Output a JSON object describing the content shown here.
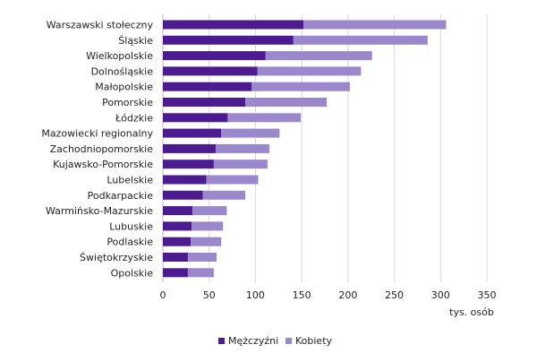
{
  "chart_data": {
    "type": "bar",
    "orientation": "horizontal",
    "stacked": true,
    "categories": [
      "Warszawski stołeczny",
      "Śląskie",
      "Wielkopolskie",
      "Dolnośląskie",
      "Małopolskie",
      "Pomorskie",
      "Łódzkie",
      "Mazowiecki regionalny",
      "Zachodniopomorskie",
      "Kujawsko-Pomorskie",
      "Lubelskie",
      "Podkarpackie",
      "Warmińsko-Mazurskie",
      "Lubuskie",
      "Podlaskie",
      "Świętokrzyskie",
      "Opolskie"
    ],
    "series": [
      {
        "name": "Mężczyźni",
        "color": "#4b1b8f",
        "values": [
          152,
          141,
          111,
          102,
          96,
          89,
          70,
          63,
          57,
          55,
          47,
          43,
          32,
          31,
          30,
          27,
          27
        ]
      },
      {
        "name": "Kobiety",
        "color": "#9b87cc",
        "values": [
          154,
          145,
          115,
          112,
          106,
          88,
          79,
          63,
          58,
          58,
          56,
          46,
          37,
          34,
          33,
          31,
          28
        ]
      }
    ],
    "xlim": [
      0,
      350
    ],
    "xticks": [
      0,
      50,
      100,
      150,
      200,
      250,
      300,
      350
    ],
    "xlabel": "tys. osób",
    "grid": true,
    "legend_position": "bottom"
  }
}
